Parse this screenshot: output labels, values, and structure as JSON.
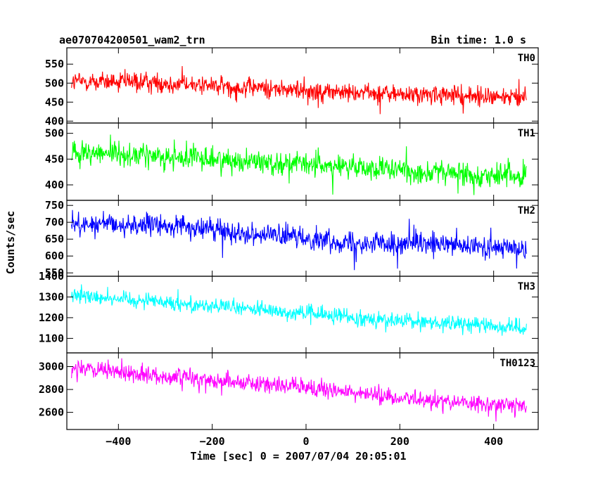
{
  "chart_data": {
    "type": "line",
    "title": "ae070704200501_wam2_trn",
    "bin_time_label": "Bin time: 1.0 s",
    "xlabel": "Time [sec] 0 = 2007/07/04 20:05:01",
    "ylabel": "Counts/sec",
    "x_range": [
      -500,
      470
    ],
    "xlim": [
      -510,
      495
    ],
    "bin_seconds": 1.0,
    "x_ticks": [
      -400,
      -200,
      0,
      200,
      400
    ],
    "x_tick_labels": [
      "−400",
      "−200",
      "0",
      "200",
      "400"
    ],
    "grid": false,
    "panels": [
      {
        "name": "TH0",
        "color": "#ff0000",
        "ylim": [
          395,
          593
        ],
        "y_ticks": [
          400,
          450,
          500,
          550
        ],
        "trend": [
          [
            -500,
            505
          ],
          [
            -300,
            500
          ],
          [
            0,
            480
          ],
          [
            200,
            470
          ],
          [
            470,
            462
          ]
        ],
        "noise_amplitude": 32
      },
      {
        "name": "TH1",
        "color": "#00ff00",
        "ylim": [
          370,
          520
        ],
        "y_ticks": [
          400,
          450,
          500
        ],
        "trend": [
          [
            -500,
            465
          ],
          [
            -200,
            450
          ],
          [
            0,
            440
          ],
          [
            200,
            428
          ],
          [
            470,
            415
          ]
        ],
        "noise_amplitude": 28
      },
      {
        "name": "TH2",
        "color": "#0000ff",
        "ylim": [
          540,
          765
        ],
        "y_ticks": [
          550,
          600,
          650,
          700,
          750
        ],
        "trend": [
          [
            -500,
            695
          ],
          [
            -300,
            690
          ],
          [
            -100,
            665
          ],
          [
            100,
            640
          ],
          [
            470,
            622
          ]
        ],
        "noise_amplitude": 38
      },
      {
        "name": "TH3",
        "color": "#00ffff",
        "ylim": [
          1030,
          1400
        ],
        "y_ticks": [
          1100,
          1200,
          1300,
          1400
        ],
        "trend": [
          [
            -500,
            1310
          ],
          [
            -300,
            1275
          ],
          [
            0,
            1220
          ],
          [
            200,
            1185
          ],
          [
            470,
            1150
          ]
        ],
        "noise_amplitude": 45
      },
      {
        "name": "TH0123",
        "color": "#ff00ff",
        "ylim": [
          2450,
          3120
        ],
        "y_ticks": [
          2600,
          2800,
          3000
        ],
        "trend": [
          [
            -500,
            2985
          ],
          [
            -300,
            2915
          ],
          [
            0,
            2820
          ],
          [
            200,
            2720
          ],
          [
            470,
            2650
          ]
        ],
        "noise_amplitude": 90
      }
    ]
  }
}
